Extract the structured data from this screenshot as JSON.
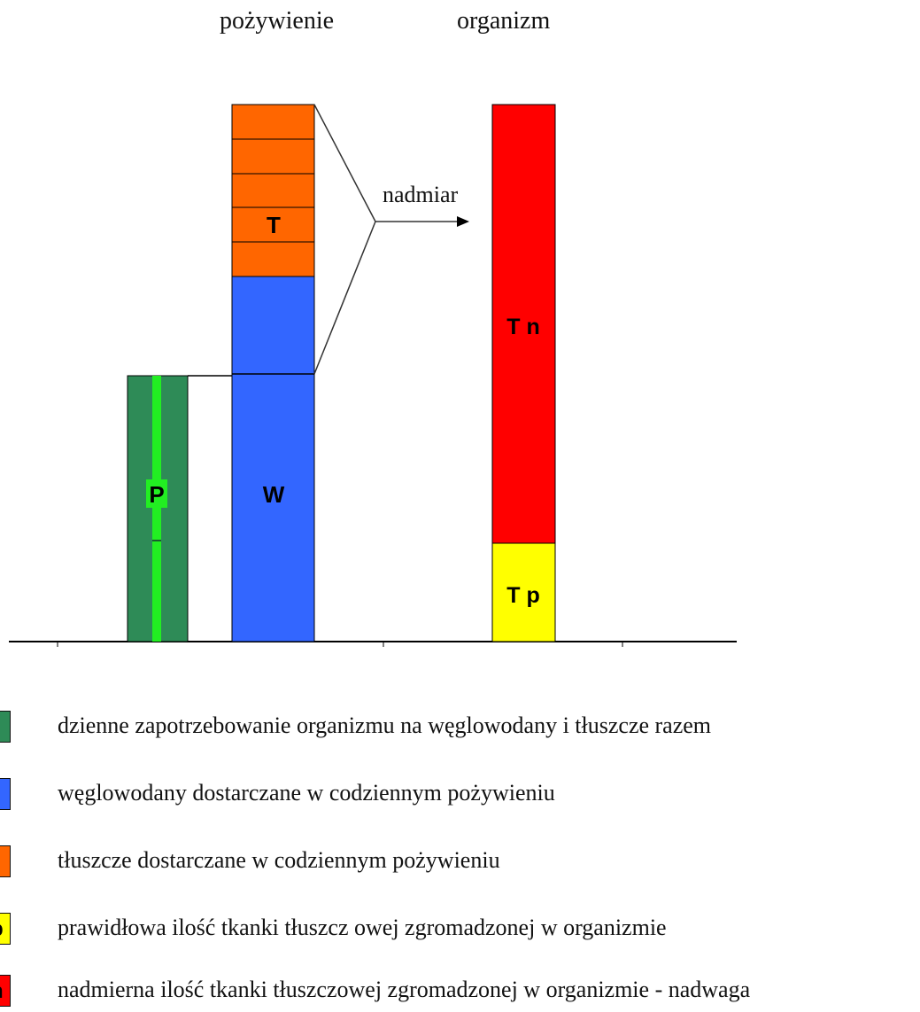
{
  "headers": {
    "food": "pożywienie",
    "organism": "organizm"
  },
  "bars": {
    "p_label": "P",
    "w_label": "W",
    "t_label": "T",
    "tn_label": "T n",
    "tp_label": "T p"
  },
  "arrow_label": "nadmiar",
  "colors": {
    "dark_green": "#2e8b57",
    "light_green": "#22ee22",
    "blue": "#3366ff",
    "orange": "#ff6600",
    "red": "#ff0000",
    "yellow": "#ffff00"
  },
  "legend": [
    {
      "color": "#2e8b57",
      "letter": "",
      "text": "dzienne zapotrzebowanie organizmu na węglowodany i tłuszcze razem"
    },
    {
      "color": "#3366ff",
      "letter": "",
      "text": "węglowodany dostarczane w codziennym pożywieniu"
    },
    {
      "color": "#ff6600",
      "letter": "",
      "text": "tłuszcze dostarczane w codziennym pożywieniu"
    },
    {
      "color": "#ffff00",
      "letter": "p",
      "text": "prawidłowa ilość tkanki tłuszcz owej zgromadzonej w organizmie"
    },
    {
      "color": "#ff0000",
      "letter": "n",
      "text": "nadmierna ilość tkanki tłuszczowej zgromadzonej w organizmie   - nadwaga"
    }
  ]
}
